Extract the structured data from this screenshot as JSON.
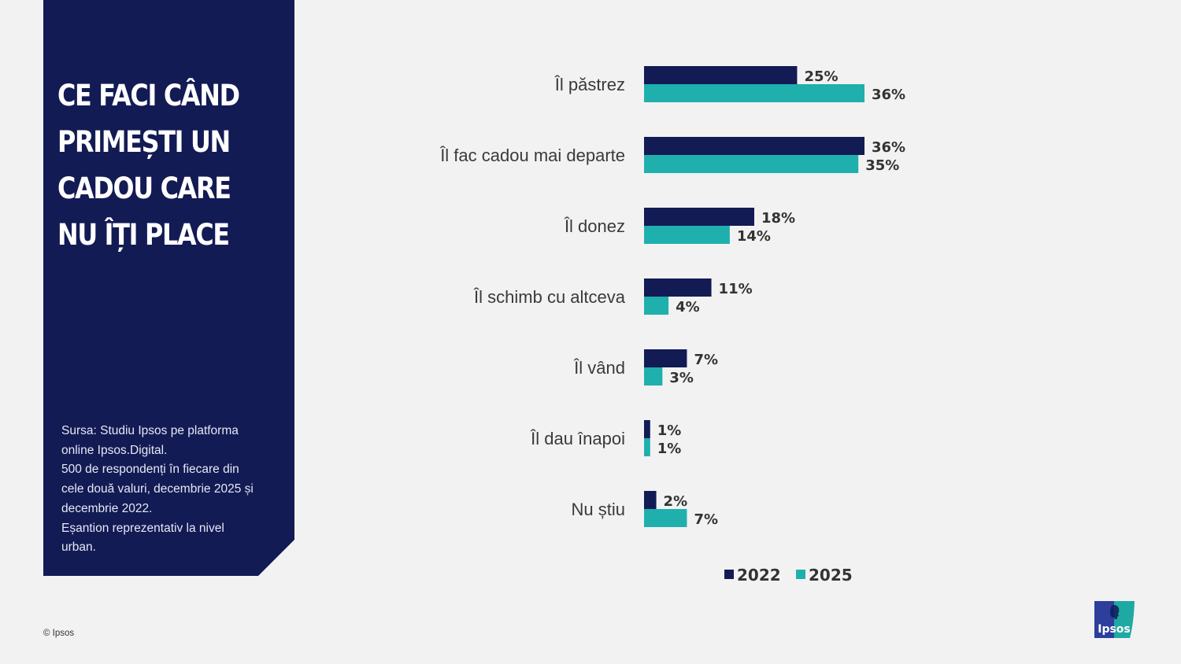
{
  "panel": {
    "title_lines": [
      "CE FACI CÂND",
      "PRIMEȘTI UN",
      "CADOU CARE",
      "NU ÎȚI PLACE"
    ],
    "source_lines": [
      "Sursa: Studiu Ipsos pe platforma",
      "online Ipsos.Digital.",
      "500 de respondenți în fiecare din",
      "cele două valuri, decembrie 2025 și",
      "decembrie 2022.",
      "Eșantion reprezentativ la nivel",
      "urban."
    ]
  },
  "footer": {
    "copyright": "© Ipsos"
  },
  "logo": {
    "text": "Ipsos",
    "colors": {
      "left": "#2d3e9c",
      "right": "#1fa9a3"
    }
  },
  "colors": {
    "series_2022": "#131b55",
    "series_2025": "#1fb0ad",
    "panel_bg": "#131b55",
    "page_bg": "#f2f2f2"
  },
  "chart_data": {
    "type": "bar",
    "orientation": "horizontal",
    "title": "CE FACI CÂND PRIMEȘTI UN CADOU CARE NU ÎȚI PLACE",
    "categories": [
      "Îl păstrez",
      "Îl fac cadou mai departe",
      "Îl donez",
      "Îl schimb cu altceva",
      "Îl vând",
      "Îl dau înapoi",
      "Nu știu"
    ],
    "series": [
      {
        "name": "2022",
        "values": [
          25,
          36,
          18,
          11,
          7,
          1,
          2
        ],
        "labels": [
          "25%",
          "36%",
          "18%",
          "11%",
          "7%",
          "1%",
          "2%"
        ]
      },
      {
        "name": "2025",
        "values": [
          36,
          35,
          14,
          4,
          3,
          1,
          7
        ],
        "labels": [
          "36%",
          "35%",
          "14%",
          "4%",
          "3%",
          "1%",
          "7%"
        ]
      }
    ],
    "unit": "%",
    "xlim": [
      0,
      36
    ],
    "grid": false,
    "legend": {
      "position": "bottom",
      "entries": [
        "2022",
        "2025"
      ]
    }
  }
}
